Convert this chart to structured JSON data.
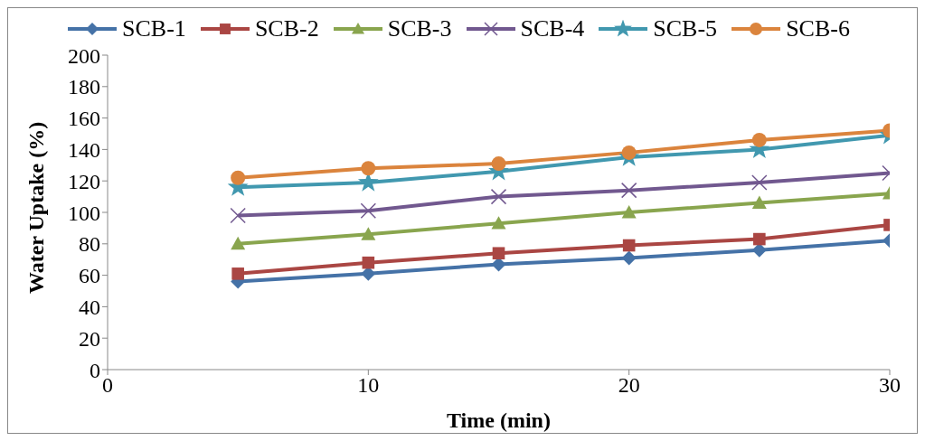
{
  "chart_data": {
    "type": "line",
    "xlabel": "Time (min)",
    "ylabel": "Water Uptake (%)",
    "x": [
      5,
      10,
      15,
      20,
      25,
      30
    ],
    "series": [
      {
        "name": "SCB-1",
        "color": "#4572a7",
        "marker": "diamond",
        "values": [
          56,
          61,
          67,
          71,
          76,
          82
        ]
      },
      {
        "name": "SCB-2",
        "color": "#aa4643",
        "marker": "square",
        "values": [
          61,
          68,
          74,
          79,
          83,
          92
        ]
      },
      {
        "name": "SCB-3",
        "color": "#89a54e",
        "marker": "triangle",
        "values": [
          80,
          86,
          93,
          100,
          106,
          112
        ]
      },
      {
        "name": "SCB-4",
        "color": "#71588f",
        "marker": "cross",
        "values": [
          98,
          101,
          110,
          114,
          119,
          125
        ]
      },
      {
        "name": "SCB-5",
        "color": "#4198af",
        "marker": "star",
        "values": [
          116,
          119,
          126,
          135,
          140,
          149
        ]
      },
      {
        "name": "SCB-6",
        "color": "#db843d",
        "marker": "circle",
        "values": [
          122,
          128,
          131,
          138,
          146,
          152
        ]
      }
    ],
    "xlim": [
      0,
      30
    ],
    "xticks": [
      0,
      10,
      20,
      30
    ],
    "ylim": [
      0,
      200
    ],
    "yticks": [
      0,
      20,
      40,
      60,
      80,
      100,
      120,
      140,
      160,
      180,
      200
    ],
    "grid": false,
    "legend": "top",
    "line_style": "solid"
  }
}
